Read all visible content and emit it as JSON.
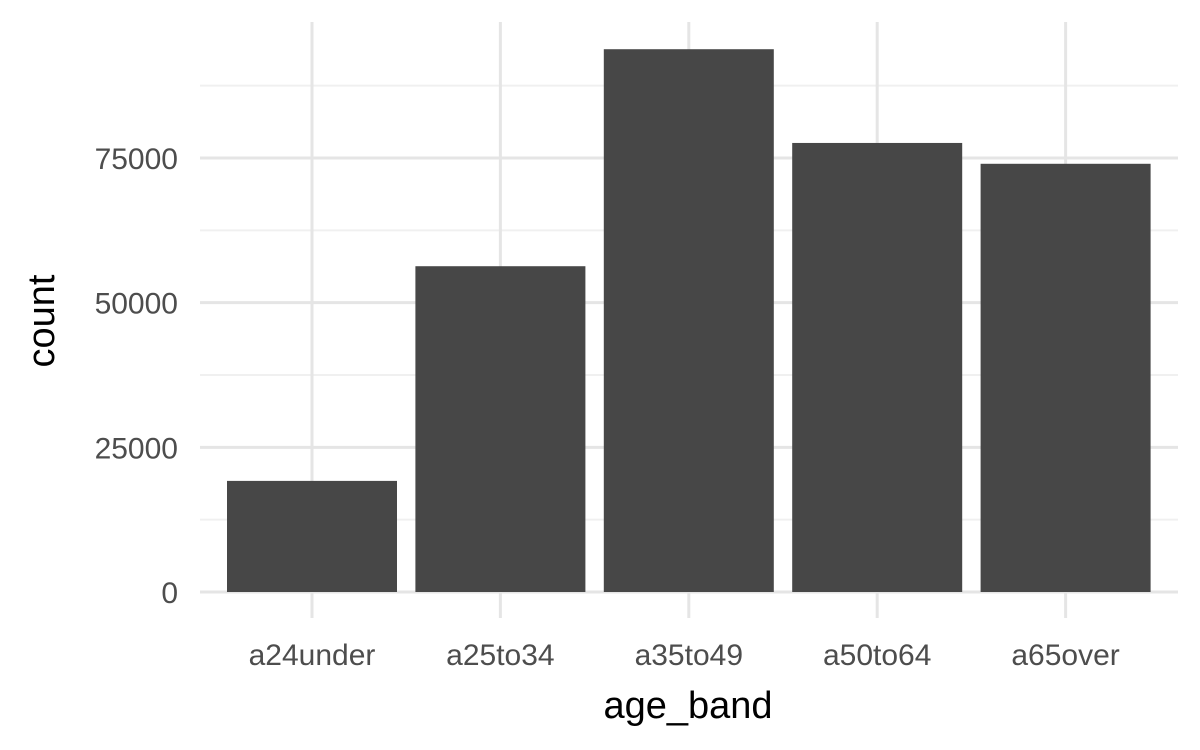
{
  "chart_data": {
    "type": "bar",
    "categories": [
      "a24under",
      "a25to34",
      "a35to49",
      "a50to64",
      "a65over"
    ],
    "values": [
      19200,
      56300,
      93800,
      77600,
      74000
    ],
    "xlabel": "age_band",
    "ylabel": "count",
    "ylim": [
      0,
      100000
    ],
    "yticks": [
      0,
      25000,
      50000,
      75000
    ],
    "ytick_labels": [
      "0",
      "25000",
      "50000",
      "75000"
    ],
    "minor_gridlines": true,
    "legend": "none",
    "colors": {
      "bar": "#474747",
      "grid_major": "#e5e5e5",
      "grid_minor": "#f0f0f0",
      "background": "#ffffff"
    }
  }
}
